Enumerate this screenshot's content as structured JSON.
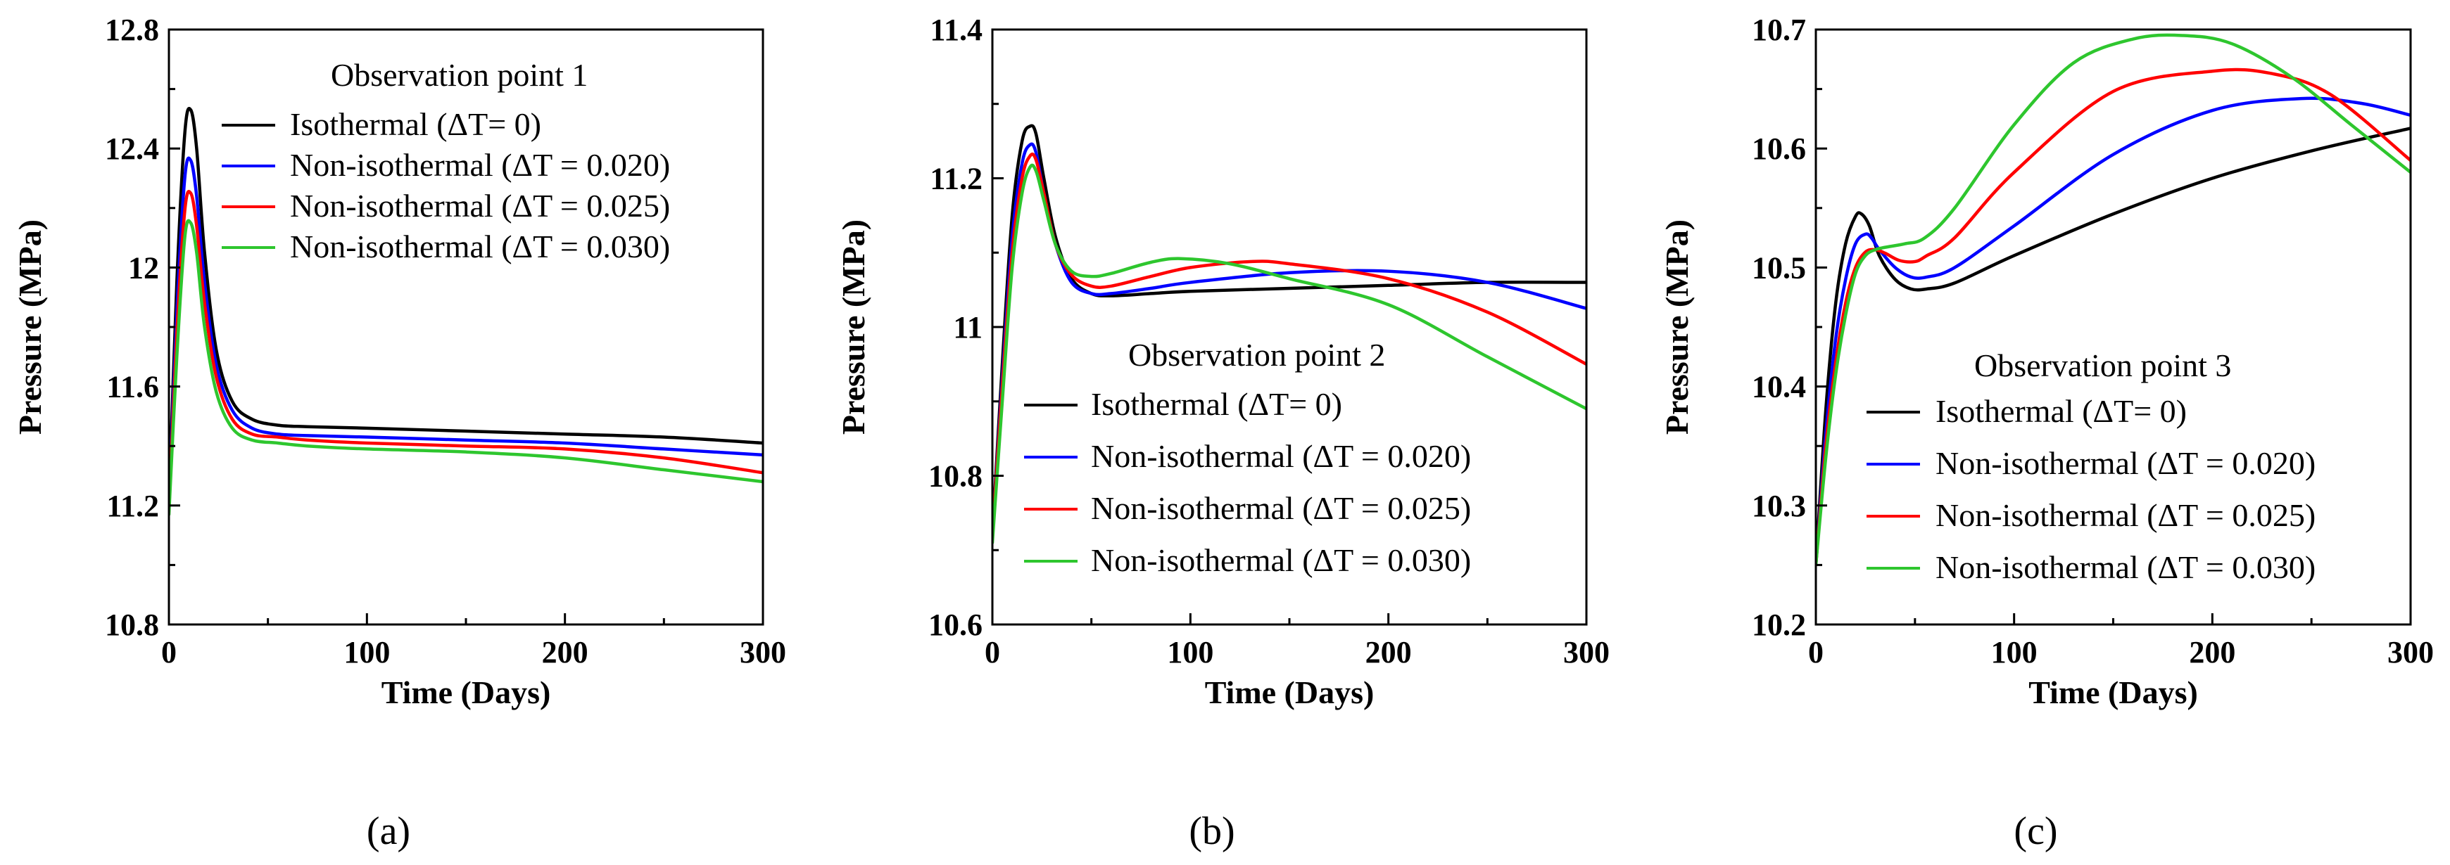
{
  "colors": {
    "isothermal": "#000000",
    "dT020": "#0000ff",
    "dT025": "#ff0000",
    "dT030": "#2ec62e"
  },
  "chart_data": [
    {
      "type": "line",
      "panel_label": "(a)",
      "title": "Observation point 1",
      "xlabel": "Time (Days)",
      "ylabel": "Pressure (MPa)",
      "xlim": [
        0,
        300
      ],
      "ylim": [
        10.8,
        12.8
      ],
      "xticks": [
        0,
        100,
        200,
        300
      ],
      "yticks": [
        10.8,
        11.2,
        11.6,
        12,
        12.4,
        12.8
      ],
      "ytick_labels": [
        "10.8",
        "11.2",
        "11.6",
        "12",
        "12.4",
        "12.8"
      ],
      "legend_position": "top-right",
      "series": [
        {
          "name": "Isothermal (ΔT= 0)",
          "color_key": "isothermal",
          "x": [
            0,
            4,
            8,
            11,
            14,
            18,
            24,
            32,
            42,
            55,
            70,
            100,
            150,
            200,
            250,
            300
          ],
          "y": [
            11.2,
            11.95,
            12.45,
            12.53,
            12.4,
            12.05,
            11.72,
            11.55,
            11.49,
            11.47,
            11.465,
            11.46,
            11.45,
            11.44,
            11.43,
            11.41
          ]
        },
        {
          "name": "Non-isothermal (ΔT = 0.020)",
          "color_key": "dT020",
          "x": [
            0,
            4,
            8,
            11,
            14,
            18,
            24,
            32,
            42,
            55,
            70,
            100,
            150,
            200,
            250,
            300
          ],
          "y": [
            11.19,
            11.85,
            12.3,
            12.36,
            12.24,
            11.95,
            11.67,
            11.52,
            11.46,
            11.44,
            11.435,
            11.43,
            11.42,
            11.41,
            11.39,
            11.37
          ]
        },
        {
          "name": "Non-isothermal (ΔT = 0.025)",
          "color_key": "dT025",
          "x": [
            0,
            4,
            8,
            11,
            14,
            18,
            24,
            32,
            42,
            55,
            70,
            100,
            150,
            200,
            250,
            300
          ],
          "y": [
            11.18,
            11.78,
            12.19,
            12.25,
            12.14,
            11.88,
            11.63,
            11.49,
            11.44,
            11.43,
            11.42,
            11.41,
            11.4,
            11.39,
            11.36,
            11.31
          ]
        },
        {
          "name": "Non-isothermal (ΔT = 0.030)",
          "color_key": "dT030",
          "x": [
            0,
            4,
            8,
            11,
            14,
            18,
            24,
            32,
            42,
            55,
            70,
            100,
            150,
            200,
            250,
            300
          ],
          "y": [
            11.17,
            11.7,
            12.1,
            12.15,
            12.05,
            11.8,
            11.58,
            11.46,
            11.42,
            11.41,
            11.4,
            11.39,
            11.38,
            11.36,
            11.32,
            11.28
          ]
        }
      ]
    },
    {
      "type": "line",
      "panel_label": "(b)",
      "title": "Observation point 2",
      "xlabel": "Time (Days)",
      "ylabel": "Pressure (MPa)",
      "xlim": [
        0,
        300
      ],
      "ylim": [
        10.6,
        11.4
      ],
      "xticks": [
        0,
        100,
        200,
        300
      ],
      "yticks": [
        10.6,
        10.8,
        11,
        11.2,
        11.4
      ],
      "ytick_labels": [
        "10.6",
        "10.8",
        "11",
        "11.2",
        "11.4"
      ],
      "legend_position": "lower-right",
      "series": [
        {
          "name": "Isothermal (ΔT= 0)",
          "color_key": "isothermal",
          "x": [
            0,
            5,
            10,
            15,
            19,
            22,
            26,
            32,
            40,
            50,
            60,
            80,
            100,
            150,
            200,
            250,
            300
          ],
          "y": [
            10.72,
            10.95,
            11.15,
            11.25,
            11.27,
            11.26,
            11.2,
            11.12,
            11.065,
            11.045,
            11.042,
            11.045,
            11.048,
            11.052,
            11.056,
            11.06,
            11.06
          ]
        },
        {
          "name": "Non-isothermal (ΔT = 0.020)",
          "color_key": "dT020",
          "x": [
            0,
            5,
            10,
            15,
            19,
            22,
            26,
            32,
            40,
            50,
            60,
            80,
            100,
            150,
            200,
            250,
            300
          ],
          "y": [
            10.72,
            10.93,
            11.12,
            11.22,
            11.245,
            11.235,
            11.18,
            11.11,
            11.06,
            11.045,
            11.045,
            11.052,
            11.06,
            11.073,
            11.075,
            11.06,
            11.025
          ]
        },
        {
          "name": "Non-isothermal (ΔT = 0.025)",
          "color_key": "dT025",
          "x": [
            0,
            5,
            10,
            15,
            19,
            22,
            26,
            32,
            40,
            50,
            60,
            80,
            100,
            130,
            150,
            200,
            250,
            300
          ],
          "y": [
            10.72,
            10.92,
            11.1,
            11.2,
            11.23,
            11.225,
            11.18,
            11.11,
            11.07,
            11.055,
            11.055,
            11.068,
            11.08,
            11.088,
            11.085,
            11.065,
            11.02,
            10.95
          ]
        },
        {
          "name": "Non-isothermal (ΔT = 0.030)",
          "color_key": "dT030",
          "x": [
            0,
            5,
            10,
            15,
            19,
            22,
            26,
            32,
            40,
            50,
            60,
            80,
            95,
            120,
            150,
            200,
            250,
            300
          ],
          "y": [
            10.71,
            10.9,
            11.08,
            11.18,
            11.215,
            11.21,
            11.17,
            11.11,
            11.075,
            11.068,
            11.072,
            11.087,
            11.092,
            11.085,
            11.065,
            11.03,
            10.96,
            10.89
          ]
        }
      ]
    },
    {
      "type": "line",
      "panel_label": "(c)",
      "title": "Observation point 3",
      "xlabel": "Time (Days)",
      "ylabel": "Pressure (MPa)",
      "xlim": [
        0,
        300
      ],
      "ylim": [
        10.2,
        10.7
      ],
      "xticks": [
        0,
        100,
        200,
        300
      ],
      "yticks": [
        10.2,
        10.3,
        10.4,
        10.5,
        10.6,
        10.7
      ],
      "ytick_labels": [
        "10.2",
        "10.3",
        "10.4",
        "10.5",
        "10.6",
        "10.7"
      ],
      "legend_position": "lower-right",
      "series": [
        {
          "name": "Isothermal (ΔT= 0)",
          "color_key": "isothermal",
          "x": [
            0,
            5,
            10,
            15,
            20,
            23,
            27,
            32,
            40,
            48,
            56,
            70,
            100,
            150,
            200,
            250,
            300
          ],
          "y": [
            10.25,
            10.38,
            10.47,
            10.52,
            10.543,
            10.545,
            10.535,
            10.51,
            10.49,
            10.482,
            10.482,
            10.487,
            10.51,
            10.545,
            10.575,
            10.598,
            10.617
          ]
        },
        {
          "name": "Non-isothermal (ΔT = 0.020)",
          "color_key": "dT020",
          "x": [
            0,
            5,
            10,
            15,
            20,
            25,
            28,
            32,
            40,
            48,
            56,
            70,
            100,
            150,
            200,
            245,
            275,
            300
          ],
          "y": [
            10.25,
            10.36,
            10.44,
            10.49,
            10.52,
            10.528,
            10.525,
            10.515,
            10.5,
            10.492,
            10.492,
            10.5,
            10.535,
            10.595,
            10.632,
            10.642,
            10.638,
            10.628
          ]
        },
        {
          "name": "Non-isothermal (ΔT = 0.025)",
          "color_key": "dT025",
          "x": [
            0,
            5,
            10,
            15,
            20,
            25,
            30,
            35,
            42,
            50,
            56,
            70,
            100,
            150,
            200,
            230,
            260,
            300
          ],
          "y": [
            10.25,
            10.35,
            10.42,
            10.47,
            10.5,
            10.513,
            10.515,
            10.512,
            10.506,
            10.505,
            10.51,
            10.525,
            10.58,
            10.648,
            10.665,
            10.663,
            10.645,
            10.59
          ]
        },
        {
          "name": "Non-isothermal (ΔT = 0.030)",
          "color_key": "dT030",
          "x": [
            0,
            5,
            10,
            15,
            20,
            25,
            30,
            35,
            45,
            55,
            70,
            100,
            130,
            160,
            185,
            210,
            240,
            270,
            300
          ],
          "y": [
            10.25,
            10.34,
            10.41,
            10.46,
            10.495,
            10.51,
            10.515,
            10.517,
            10.52,
            10.525,
            10.55,
            10.62,
            10.672,
            10.692,
            10.695,
            10.688,
            10.66,
            10.62,
            10.58
          ]
        }
      ]
    }
  ]
}
